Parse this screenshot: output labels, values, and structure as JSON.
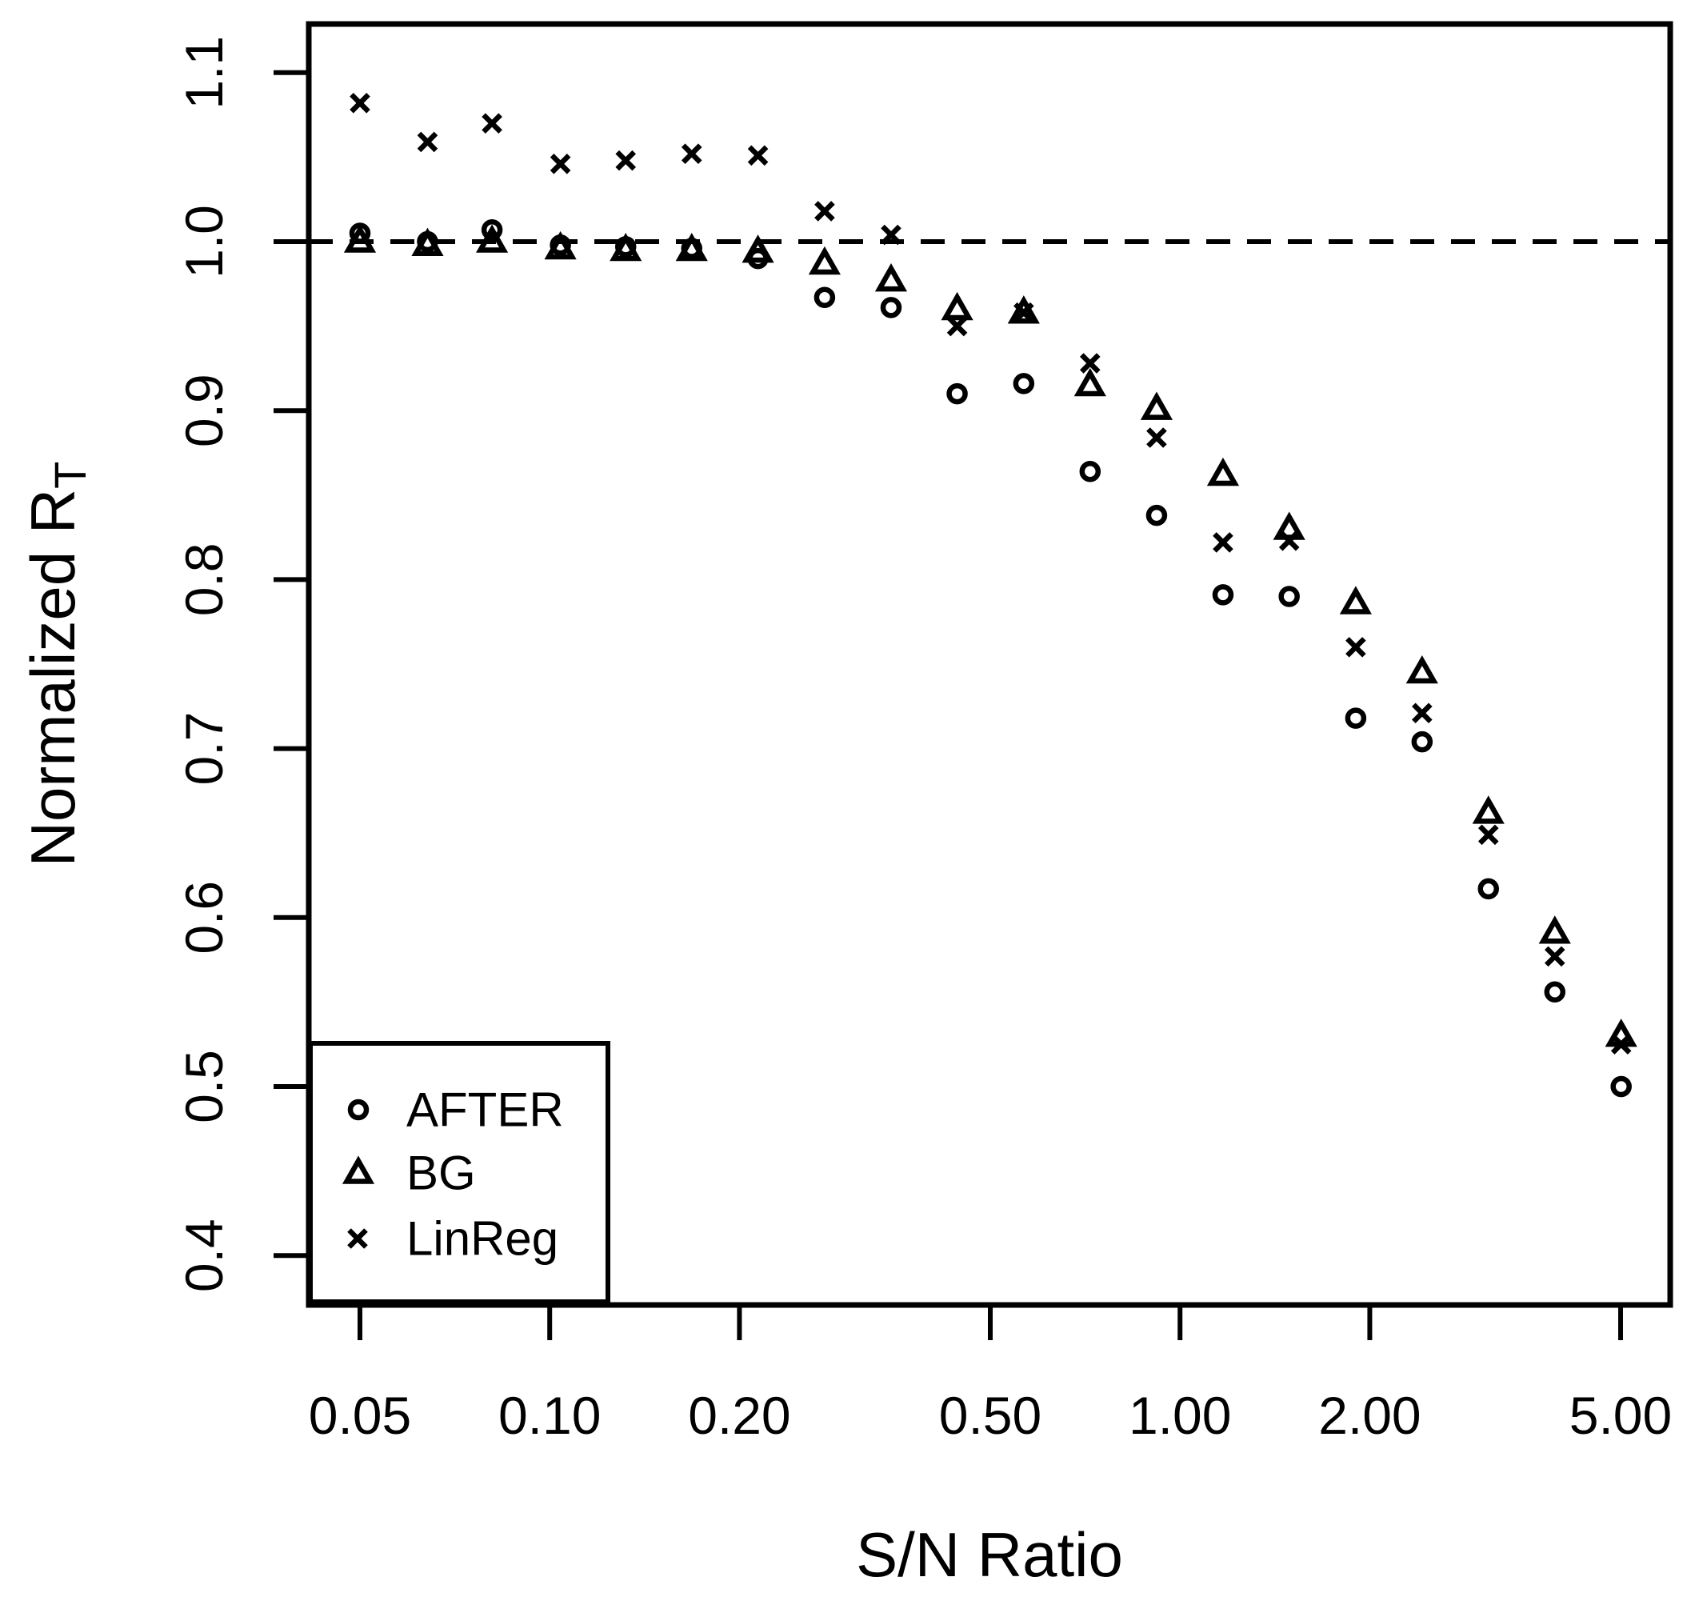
{
  "figure": {
    "background": "#ffffff",
    "foreground": "#000000"
  },
  "chart_data": {
    "type": "scatter",
    "title": "",
    "xlabel": "S/N Ratio",
    "ylabel": "Normalized R",
    "ylabel_subscript": "T",
    "x_scale": "log",
    "xlim": [
      0.0415,
      5.99
    ],
    "ylim": [
      0.371,
      1.131
    ],
    "grid": false,
    "x_ticks": {
      "labels": [
        "0.05",
        "0.10",
        "0.20",
        "0.50",
        "1.00",
        "2.00",
        "5.00"
      ],
      "values": [
        0.05,
        0.1,
        0.2,
        0.5,
        1.0,
        2.0,
        5.0
      ]
    },
    "y_ticks": {
      "labels": [
        "1.1",
        "1.0",
        "0.9",
        "0.8",
        "0.7",
        "0.6",
        "0.5",
        "0.4"
      ],
      "values": [
        1.1,
        1.0,
        0.9,
        0.8,
        0.7,
        0.6,
        0.5,
        0.4
      ]
    },
    "reference_line": {
      "y": 1.0,
      "style": "dashed"
    },
    "x": [
      0.05,
      0.064,
      0.081,
      0.104,
      0.132,
      0.168,
      0.214,
      0.273,
      0.348,
      0.443,
      0.565,
      0.72,
      0.918,
      1.17,
      1.49,
      1.9,
      2.421,
      3.085,
      3.932,
      5.01
    ],
    "series": [
      {
        "name": "AFTER",
        "marker": "circle",
        "values": [
          1.005,
          1.0,
          1.007,
          0.998,
          0.997,
          0.996,
          0.99,
          0.967,
          0.961,
          0.91,
          0.916,
          0.864,
          0.838,
          0.791,
          0.79,
          0.718,
          0.704,
          0.617,
          0.556,
          0.5
        ]
      },
      {
        "name": "BG",
        "marker": "triangle",
        "values": [
          1.0,
          0.998,
          1.0,
          0.996,
          0.995,
          0.995,
          0.994,
          0.987,
          0.977,
          0.96,
          0.958,
          0.915,
          0.901,
          0.862,
          0.83,
          0.786,
          0.745,
          0.662,
          0.591,
          0.53
        ]
      },
      {
        "name": "LinReg",
        "marker": "x",
        "values": [
          1.082,
          1.059,
          1.07,
          1.046,
          1.048,
          1.052,
          1.051,
          1.018,
          1.004,
          0.95,
          0.958,
          0.928,
          0.884,
          0.822,
          0.823,
          0.76,
          0.721,
          0.649,
          0.577,
          0.525
        ]
      }
    ],
    "legend": {
      "position": "bottom-left",
      "entries": [
        {
          "label": "AFTER",
          "marker": "circle"
        },
        {
          "label": "BG",
          "marker": "triangle"
        },
        {
          "label": "LinReg",
          "marker": "x"
        }
      ]
    }
  }
}
